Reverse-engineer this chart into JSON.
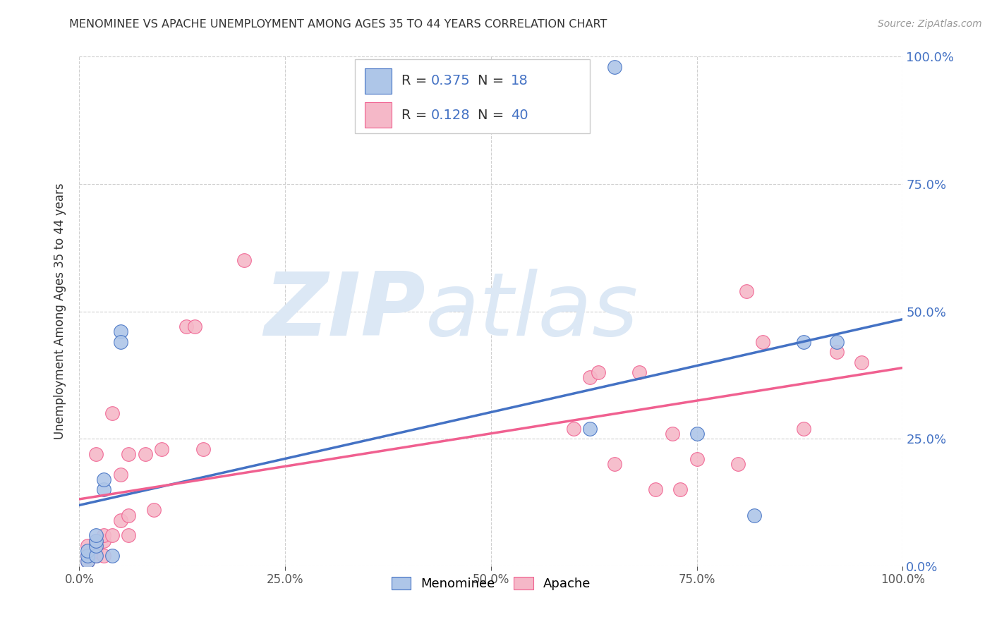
{
  "title": "MENOMINEE VS APACHE UNEMPLOYMENT AMONG AGES 35 TO 44 YEARS CORRELATION CHART",
  "source": "Source: ZipAtlas.com",
  "ylabel": "Unemployment Among Ages 35 to 44 years",
  "menominee_x": [
    0.01,
    0.01,
    0.01,
    0.02,
    0.02,
    0.02,
    0.02,
    0.03,
    0.03,
    0.04,
    0.05,
    0.05,
    0.62,
    0.65,
    0.75,
    0.82,
    0.88,
    0.92
  ],
  "menominee_y": [
    0.01,
    0.02,
    0.03,
    0.02,
    0.04,
    0.05,
    0.06,
    0.15,
    0.17,
    0.02,
    0.46,
    0.44,
    0.27,
    0.98,
    0.26,
    0.1,
    0.44,
    0.44
  ],
  "apache_x": [
    0.01,
    0.01,
    0.01,
    0.02,
    0.02,
    0.02,
    0.02,
    0.02,
    0.03,
    0.03,
    0.03,
    0.04,
    0.04,
    0.05,
    0.05,
    0.06,
    0.06,
    0.06,
    0.08,
    0.09,
    0.1,
    0.13,
    0.14,
    0.15,
    0.2,
    0.6,
    0.62,
    0.63,
    0.65,
    0.68,
    0.7,
    0.72,
    0.73,
    0.75,
    0.8,
    0.81,
    0.83,
    0.88,
    0.92,
    0.95
  ],
  "apache_y": [
    0.01,
    0.02,
    0.04,
    0.02,
    0.03,
    0.04,
    0.05,
    0.22,
    0.02,
    0.05,
    0.06,
    0.06,
    0.3,
    0.09,
    0.18,
    0.06,
    0.1,
    0.22,
    0.22,
    0.11,
    0.23,
    0.47,
    0.47,
    0.23,
    0.6,
    0.27,
    0.37,
    0.38,
    0.2,
    0.38,
    0.15,
    0.26,
    0.15,
    0.21,
    0.2,
    0.54,
    0.44,
    0.27,
    0.42,
    0.4
  ],
  "menominee_color": "#aec6e8",
  "apache_color": "#f5b8c8",
  "menominee_line_color": "#4472c4",
  "apache_line_color": "#f06090",
  "menominee_R": 0.375,
  "menominee_N": 18,
  "apache_R": 0.128,
  "apache_N": 40,
  "watermark_zip": "ZIP",
  "watermark_atlas": "atlas",
  "background_color": "#ffffff",
  "grid_color": "#d0d0d0",
  "xlim": [
    0,
    1
  ],
  "ylim": [
    0,
    1
  ],
  "yticks": [
    0,
    0.25,
    0.5,
    0.75,
    1.0
  ],
  "xticks": [
    0,
    0.25,
    0.5,
    0.75,
    1.0
  ]
}
